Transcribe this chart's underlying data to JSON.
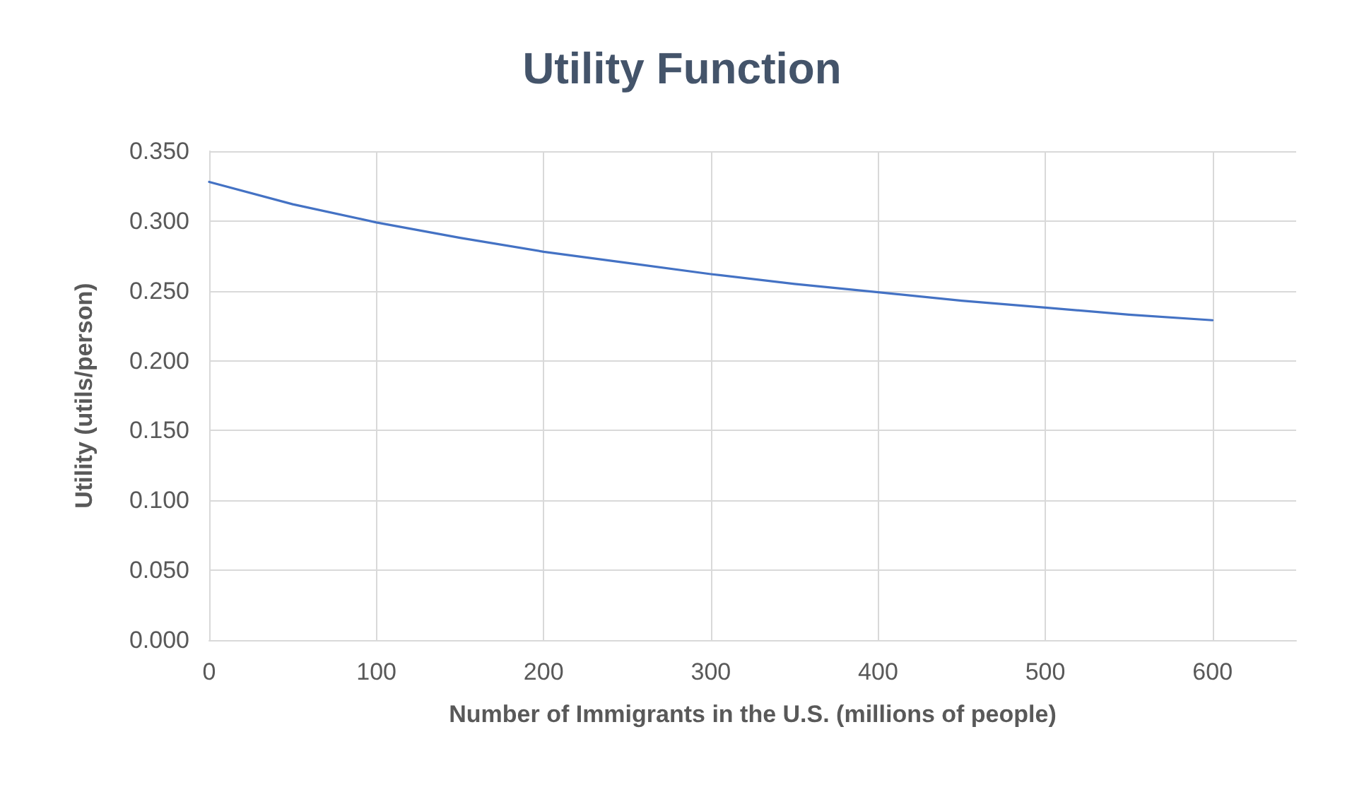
{
  "chart_data": {
    "type": "line",
    "title": "Utility Function",
    "xlabel": "Number of Immigrants in the U.S. (millions of people)",
    "ylabel": "Utility (utils/person)",
    "x": [
      0,
      50,
      100,
      150,
      200,
      250,
      300,
      350,
      400,
      450,
      500,
      550,
      600
    ],
    "series": [
      {
        "color": "#4472c4",
        "values": [
          0.328,
          0.312,
          0.299,
          0.288,
          0.278,
          0.27,
          0.262,
          0.255,
          0.249,
          0.243,
          0.238,
          0.233,
          0.229
        ]
      }
    ],
    "xlim": [
      0,
      650
    ],
    "xticks": [
      0,
      100,
      200,
      300,
      400,
      500,
      600
    ],
    "ylim": [
      0,
      0.35
    ],
    "yticks": [
      {
        "value": 0,
        "label": "0.000"
      },
      {
        "value": 0.05,
        "label": "0.050"
      },
      {
        "value": 0.1,
        "label": "0.100"
      },
      {
        "value": 0.15,
        "label": "0.150"
      },
      {
        "value": 0.2,
        "label": "0.200"
      },
      {
        "value": 0.25,
        "label": "0.250"
      },
      {
        "value": 0.3,
        "label": "0.300"
      },
      {
        "value": 0.35,
        "label": "0.350"
      }
    ],
    "grid": true,
    "marker": "none",
    "line_style": "solid"
  }
}
